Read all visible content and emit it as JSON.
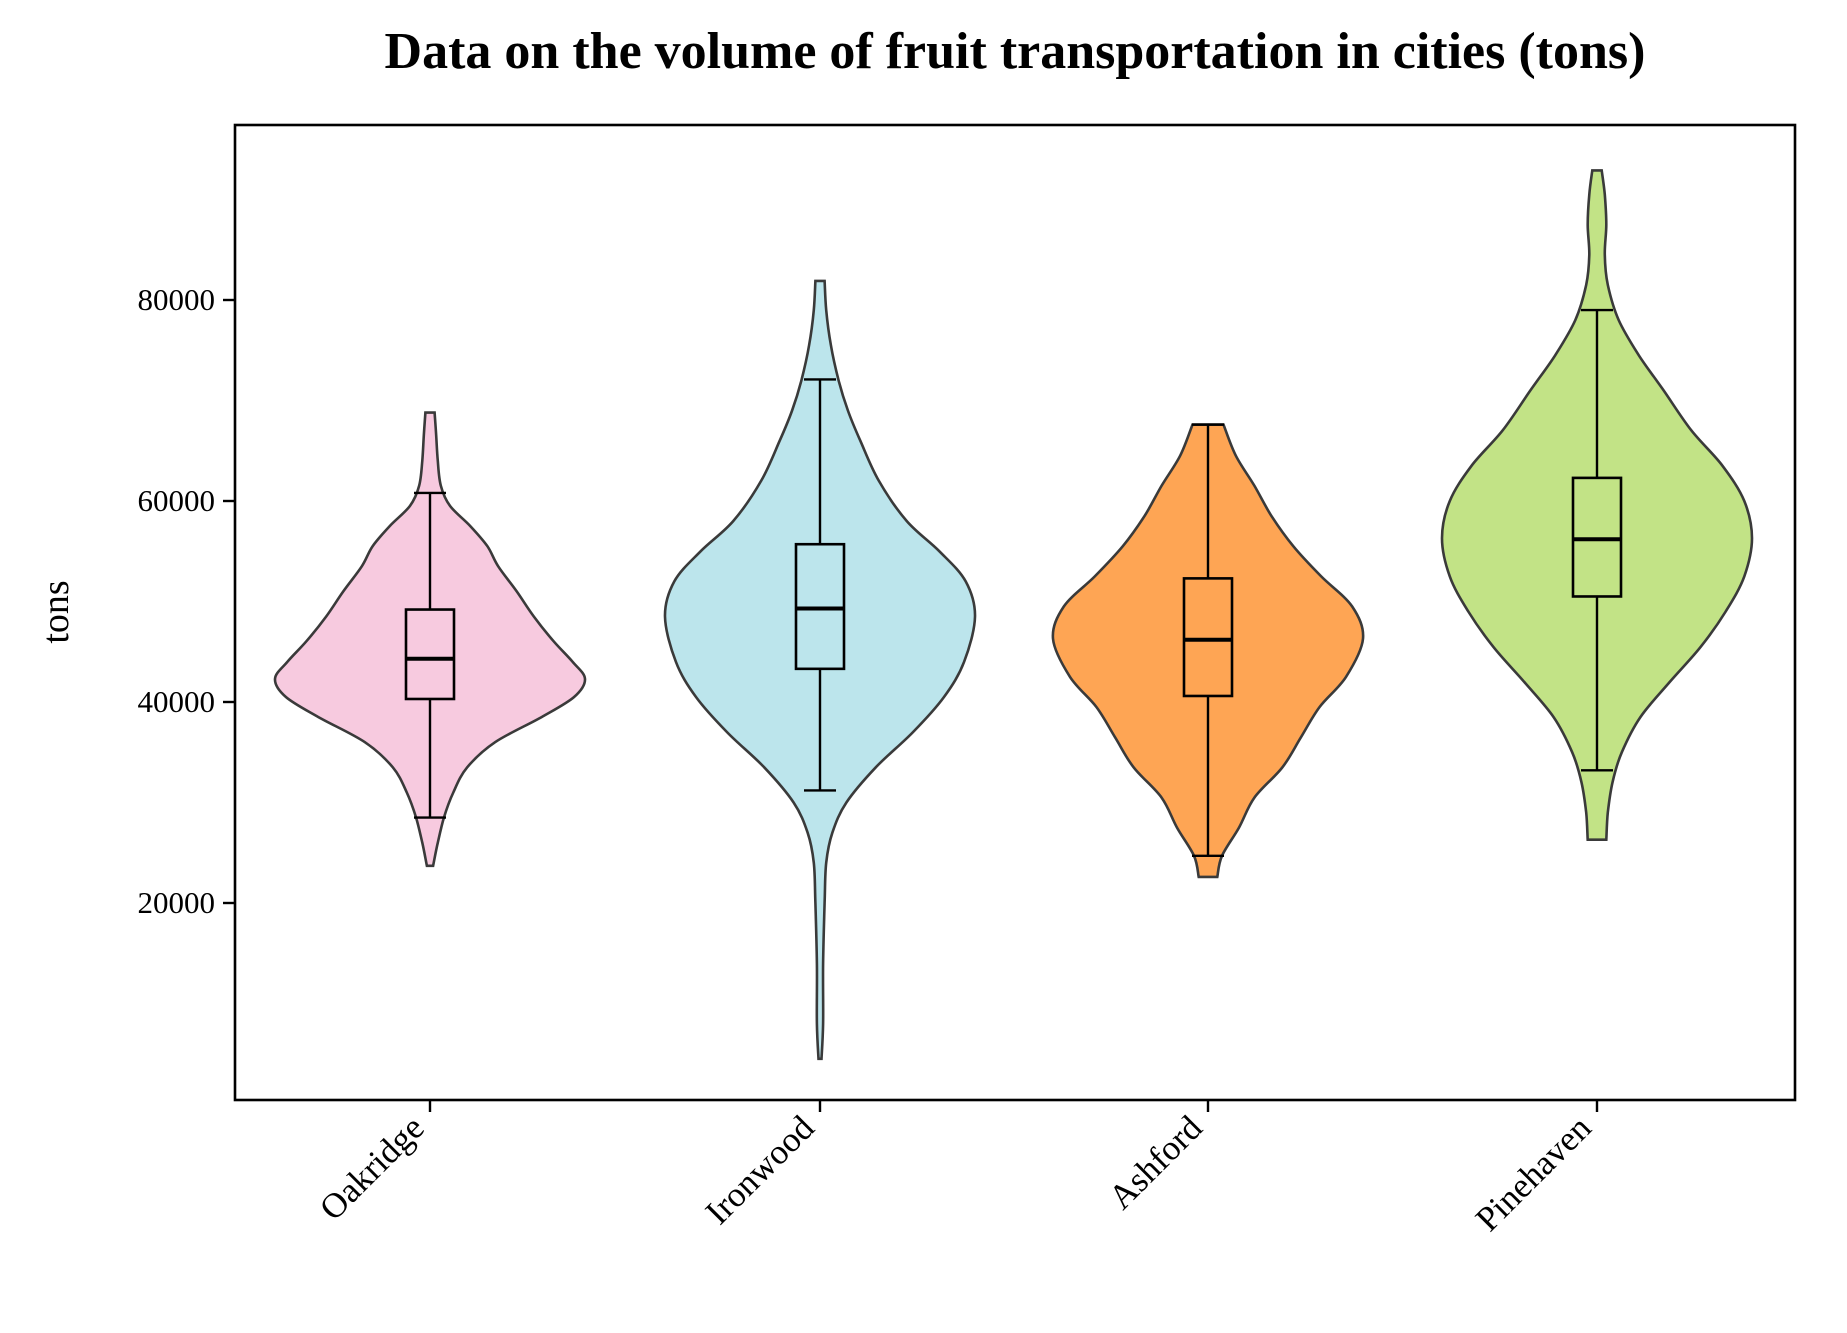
{
  "chart_data": {
    "type": "violin",
    "title": "Data on the volume of fruit transportation in cities (tons)",
    "xlabel": "",
    "ylabel": "tons",
    "ylim": [
      0,
      97000
    ],
    "yticks": [
      20000,
      40000,
      60000,
      80000
    ],
    "grid": false,
    "categories": [
      "Oakridge",
      "Ironwood",
      "Ashford",
      "Pinehaven"
    ],
    "series": [
      {
        "category": "Oakridge",
        "color": "#f7cadf",
        "min": 23700,
        "max": 68800,
        "whisker_low": 28500,
        "q1": 40300,
        "median": 44300,
        "q3": 49200,
        "whisker_high": 60800,
        "density": [
          [
            23700,
            0.02
          ],
          [
            26000,
            0.05
          ],
          [
            28500,
            0.09
          ],
          [
            31000,
            0.15
          ],
          [
            33500,
            0.24
          ],
          [
            36000,
            0.42
          ],
          [
            38500,
            0.72
          ],
          [
            40500,
            0.93
          ],
          [
            42300,
            1.0
          ],
          [
            44000,
            0.92
          ],
          [
            46000,
            0.8
          ],
          [
            48500,
            0.67
          ],
          [
            51000,
            0.56
          ],
          [
            53500,
            0.44
          ],
          [
            55500,
            0.37
          ],
          [
            57500,
            0.26
          ],
          [
            59500,
            0.13
          ],
          [
            61500,
            0.07
          ],
          [
            64000,
            0.05
          ],
          [
            66500,
            0.04
          ],
          [
            68800,
            0.03
          ]
        ]
      },
      {
        "category": "Ironwood",
        "color": "#bce5ec",
        "min": 4500,
        "max": 81900,
        "whisker_low": 31200,
        "q1": 43300,
        "median": 49300,
        "q3": 55700,
        "whisker_high": 72100,
        "density": [
          [
            4500,
            0.01
          ],
          [
            8000,
            0.02
          ],
          [
            14000,
            0.02
          ],
          [
            20000,
            0.03
          ],
          [
            24000,
            0.04
          ],
          [
            27000,
            0.08
          ],
          [
            30000,
            0.17
          ],
          [
            33500,
            0.36
          ],
          [
            37000,
            0.6
          ],
          [
            40500,
            0.8
          ],
          [
            44000,
            0.93
          ],
          [
            48500,
            1.0
          ],
          [
            52000,
            0.94
          ],
          [
            55000,
            0.77
          ],
          [
            58000,
            0.56
          ],
          [
            62000,
            0.38
          ],
          [
            66000,
            0.26
          ],
          [
            69000,
            0.18
          ],
          [
            72000,
            0.12
          ],
          [
            75500,
            0.07
          ],
          [
            79000,
            0.04
          ],
          [
            81900,
            0.03
          ]
        ]
      },
      {
        "category": "Ashford",
        "color": "#fea554",
        "min": 22600,
        "max": 67600,
        "whisker_low": 24700,
        "q1": 40600,
        "median": 46200,
        "q3": 52300,
        "whisker_high": 67600,
        "density": [
          [
            22600,
            0.06
          ],
          [
            24700,
            0.09
          ],
          [
            27500,
            0.2
          ],
          [
            30500,
            0.3
          ],
          [
            33500,
            0.48
          ],
          [
            36500,
            0.6
          ],
          [
            39500,
            0.72
          ],
          [
            42500,
            0.89
          ],
          [
            46300,
            1.0
          ],
          [
            49500,
            0.93
          ],
          [
            52500,
            0.73
          ],
          [
            55500,
            0.55
          ],
          [
            58500,
            0.41
          ],
          [
            61500,
            0.3
          ],
          [
            64500,
            0.18
          ],
          [
            67600,
            0.1
          ]
        ]
      },
      {
        "category": "Pinehaven",
        "color": "#c2e386",
        "min": 26300,
        "max": 92900,
        "whisker_low": 33200,
        "q1": 50500,
        "median": 56200,
        "q3": 62300,
        "whisker_high": 79000,
        "density": [
          [
            26300,
            0.06
          ],
          [
            29000,
            0.07
          ],
          [
            32000,
            0.1
          ],
          [
            35000,
            0.16
          ],
          [
            38500,
            0.28
          ],
          [
            42000,
            0.47
          ],
          [
            45500,
            0.67
          ],
          [
            49000,
            0.83
          ],
          [
            52500,
            0.95
          ],
          [
            56300,
            1.0
          ],
          [
            60000,
            0.95
          ],
          [
            63500,
            0.81
          ],
          [
            67000,
            0.61
          ],
          [
            71000,
            0.43
          ],
          [
            74500,
            0.27
          ],
          [
            78000,
            0.14
          ],
          [
            81500,
            0.07
          ],
          [
            84500,
            0.05
          ],
          [
            87500,
            0.06
          ],
          [
            90500,
            0.05
          ],
          [
            92900,
            0.03
          ]
        ]
      }
    ]
  }
}
